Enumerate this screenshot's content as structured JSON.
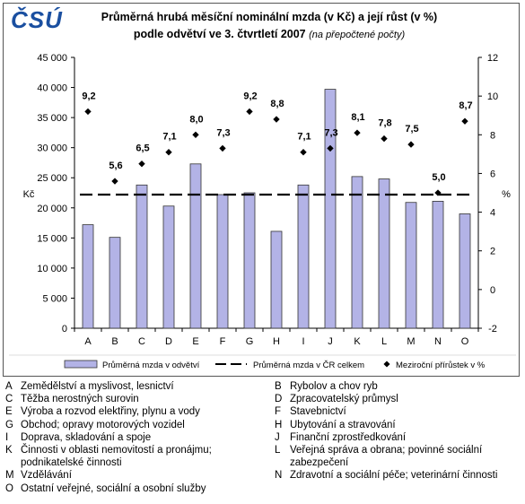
{
  "brand": {
    "logo_text": "ČSÚ",
    "logo_color": "#1a4fa0"
  },
  "chart_data": {
    "type": "bar",
    "title": "Průměrná hrubá měsíční nominální mzda (v Kč) a její růst (v %)",
    "subtitle_main": "podle odvětví ve 3. čtvrtletí 2007",
    "subtitle_note": "(na přepočtené počty)",
    "categories": [
      "A",
      "B",
      "C",
      "D",
      "E",
      "F",
      "G",
      "H",
      "I",
      "J",
      "K",
      "L",
      "M",
      "N",
      "O"
    ],
    "ylabel_left": "Kč",
    "ylabel_right": "%",
    "ylim_left": [
      0,
      45000
    ],
    "ylim_right": [
      -2,
      12
    ],
    "yticks_left": [
      "0",
      "5 000",
      "10 000",
      "15 000",
      "20 000",
      "25 000",
      "30 000",
      "35 000",
      "40 000",
      "45 000"
    ],
    "yticks_right": [
      "-2",
      "0",
      "2",
      "4",
      "6",
      "8",
      "10",
      "12"
    ],
    "series": [
      {
        "name": "Průměrná mzda v odvětví",
        "type": "bar",
        "axis": "left",
        "color": "#b3b3e6",
        "values": [
          17200,
          15100,
          23800,
          20300,
          27300,
          22200,
          22500,
          16100,
          23800,
          39700,
          25200,
          24800,
          20900,
          21100,
          19000
        ]
      },
      {
        "name": "Průměrná mzda v ČR celkem",
        "type": "line",
        "axis": "left",
        "style": "dashed",
        "color": "#000000",
        "value": 22200
      },
      {
        "name": "Meziroční přírůstek v %",
        "type": "scatter",
        "axis": "right",
        "marker": "diamond",
        "color": "#000000",
        "values": [
          9.2,
          5.6,
          6.5,
          7.1,
          8.0,
          7.3,
          9.2,
          8.8,
          7.1,
          7.3,
          8.1,
          7.8,
          7.5,
          5.0,
          8.7
        ],
        "labels": [
          "9,2",
          "5,6",
          "6,5",
          "7,1",
          "8,0",
          "7,3",
          "9,2",
          "8,8",
          "7,1",
          "7,3",
          "8,1",
          "7,8",
          "7,5",
          "5,0",
          "8,7"
        ]
      }
    ],
    "grid": false,
    "legend_position": "bottom"
  },
  "sectors": [
    [
      "A",
      "Zemědělství a myslivost, lesnictví",
      "B",
      "Rybolov a chov ryb"
    ],
    [
      "C",
      "Těžba nerostných surovin",
      "D",
      "Zpracovatelský průmysl"
    ],
    [
      "E",
      "Výroba a rozvod elektřiny, plynu a vody",
      "F",
      "Stavebnictví"
    ],
    [
      "G",
      "Obchod; opravy motorových vozidel",
      "H",
      "Ubytování a stravování"
    ],
    [
      "I",
      "Doprava, skladování a spoje",
      "J",
      "Finanční zprostředkování"
    ],
    [
      "K",
      "Činnosti v oblasti nemovitostí a pronájmu; podnikatelské činnosti",
      "L",
      "Veřejná správa a obrana; povinné sociální zabezpečení"
    ],
    [
      "M",
      "Vzdělávání",
      "N",
      "Zdravotní a sociální péče; veterinární činnosti"
    ],
    [
      "O",
      "Ostatní veřejné, sociální a osobní služby",
      "",
      ""
    ]
  ]
}
